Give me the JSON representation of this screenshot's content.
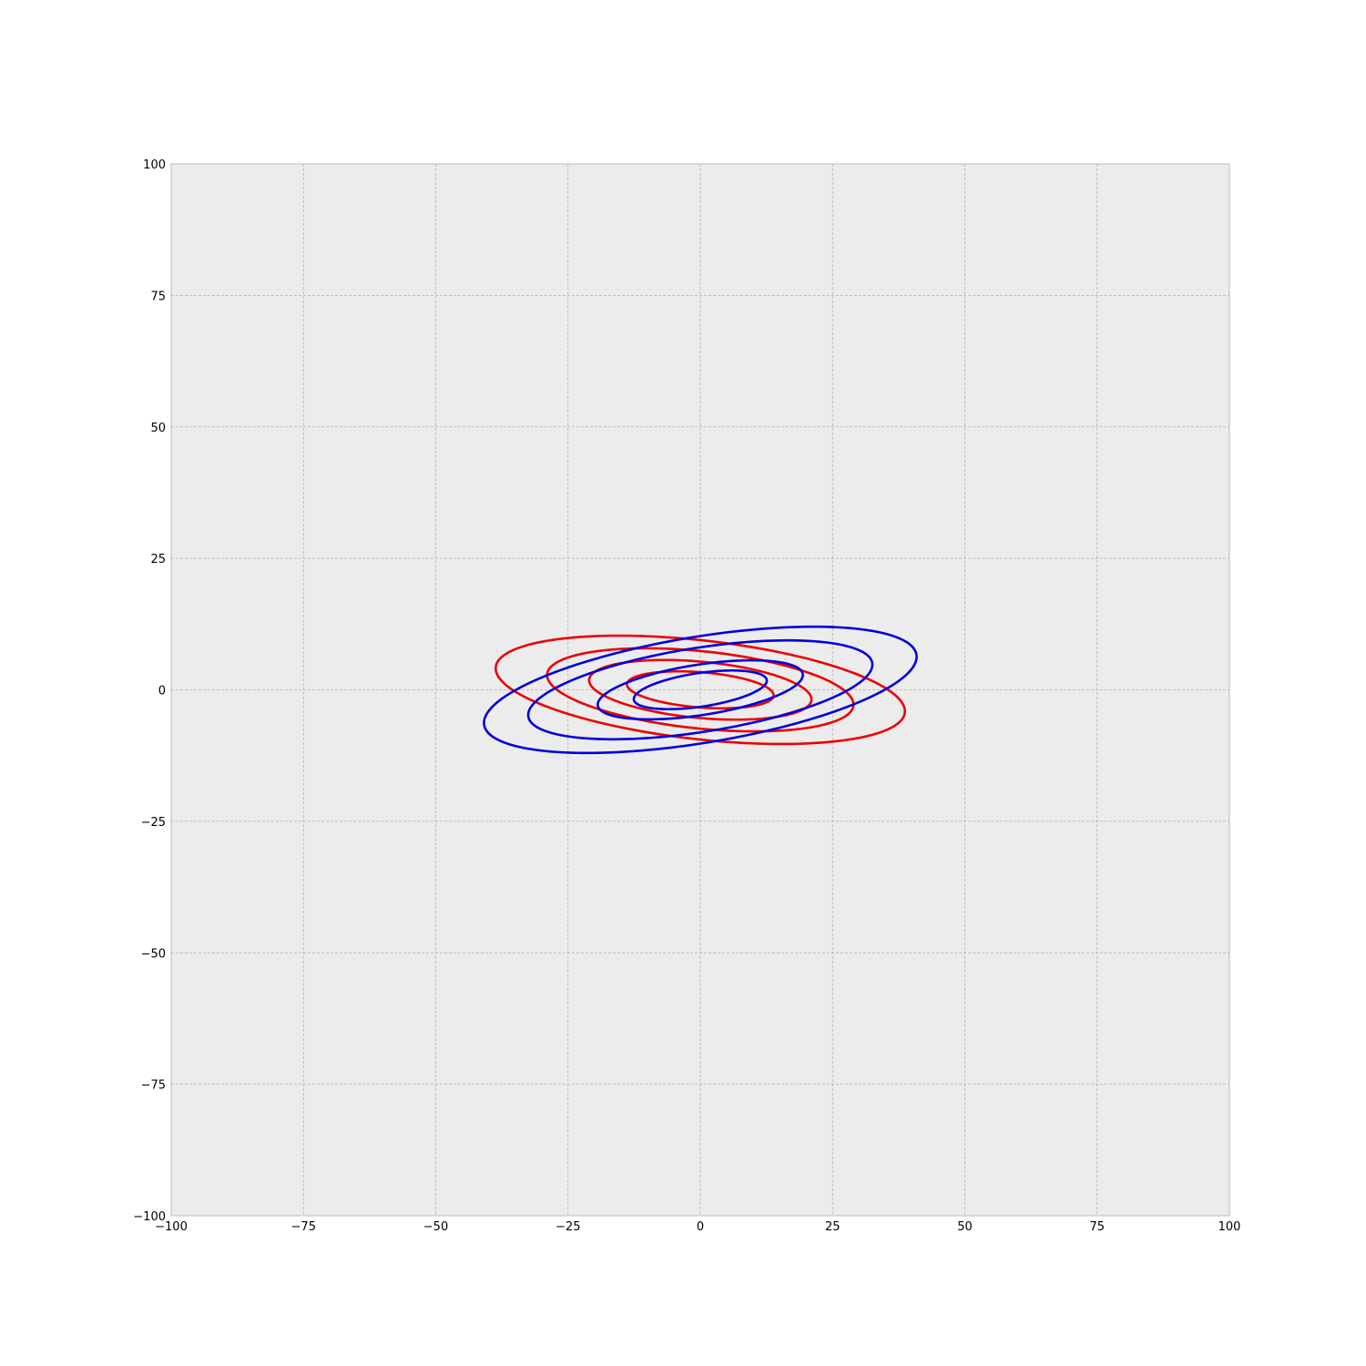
{
  "chart_data": {
    "type": "line",
    "title": "",
    "xlabel": "",
    "ylabel": "",
    "xlim": [
      -100,
      100
    ],
    "ylim": [
      -100,
      100
    ],
    "x_ticks": [
      -100,
      -75,
      -50,
      -25,
      0,
      25,
      50,
      75,
      100
    ],
    "y_ticks": [
      -100,
      -75,
      -50,
      -25,
      0,
      25,
      50,
      75,
      100
    ],
    "x_tick_labels": [
      "−100",
      "−75",
      "−50",
      "−25",
      "0",
      "25",
      "50",
      "75",
      "100"
    ],
    "y_tick_labels": [
      "−100",
      "−75",
      "−50",
      "−25",
      "0",
      "25",
      "50",
      "75",
      "100"
    ],
    "grid": true,
    "legend": "none",
    "background_color": "#ececec",
    "series": [
      {
        "color": "#ee0000",
        "ellipses": [
          {
            "cx": 0,
            "cy": 0,
            "a": 13.9,
            "b": 3.35,
            "angle_deg": -4.5
          },
          {
            "cx": 0,
            "cy": 0,
            "a": 21.1,
            "b": 5.35,
            "angle_deg": -5.3
          },
          {
            "cx": 0,
            "cy": 0,
            "a": 29.1,
            "b": 7.35,
            "angle_deg": -5.9
          },
          {
            "cx": 0,
            "cy": 0,
            "a": 38.9,
            "b": 9.4,
            "angle_deg": -6.4
          }
        ]
      },
      {
        "color": "#0000dd",
        "ellipses": [
          {
            "cx": 0,
            "cy": 0,
            "a": 12.7,
            "b": 3.2,
            "angle_deg": 8.5
          },
          {
            "cx": 0,
            "cy": 0,
            "a": 19.6,
            "b": 4.8,
            "angle_deg": 8.8
          },
          {
            "cx": 0,
            "cy": 0,
            "a": 32.9,
            "b": 8.0,
            "angle_deg": 8.9
          },
          {
            "cx": 0,
            "cy": 0,
            "a": 41.4,
            "b": 10.1,
            "angle_deg": 9.3
          }
        ]
      }
    ]
  }
}
